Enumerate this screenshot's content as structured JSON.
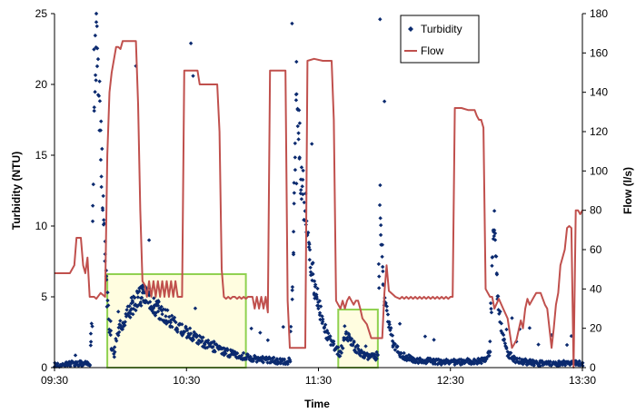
{
  "chart_data": {
    "type": "scatter",
    "xlabel": "Time",
    "ylabel": "Turbidity (NTU)",
    "y2label": "Flow (l/s)",
    "x_ticks": [
      "09:30",
      "10:30",
      "11:30",
      "12:30",
      "13:30"
    ],
    "x_tick_minutes": [
      0,
      60,
      120,
      180,
      240
    ],
    "xlim_minutes": [
      0,
      240
    ],
    "ylim": [
      0,
      25
    ],
    "y_ticks": [
      0,
      5,
      10,
      15,
      20,
      25
    ],
    "y2lim": [
      0,
      180
    ],
    "y2_ticks": [
      0,
      20,
      40,
      60,
      80,
      100,
      120,
      140,
      160,
      180
    ],
    "legend_position": "top-right",
    "colors": {
      "turbidity": "#0b2a6f",
      "flow": "#c0504d",
      "highlight_border": "#8fd14f",
      "highlight_fill": "#fffde0"
    },
    "series": [
      {
        "name": "Turbidity",
        "kind": "scatter",
        "axis": "left",
        "anchors": [
          [
            0,
            0.2
          ],
          [
            10,
            0.3
          ],
          [
            14,
            0.3
          ],
          [
            16,
            0.2
          ],
          [
            17,
            3
          ],
          [
            18,
            20
          ],
          [
            19,
            23
          ],
          [
            20,
            20
          ],
          [
            21,
            16
          ],
          [
            22,
            12
          ],
          [
            23,
            8
          ],
          [
            24,
            5
          ],
          [
            25,
            3
          ],
          [
            26,
            1.5
          ],
          [
            27,
            1
          ],
          [
            28,
            1.8
          ],
          [
            29,
            2.5
          ],
          [
            31,
            3.2
          ],
          [
            33,
            3.8
          ],
          [
            35,
            4.3
          ],
          [
            37,
            4.7
          ],
          [
            39,
            5.0
          ],
          [
            41,
            5.1
          ],
          [
            43,
            4.9
          ],
          [
            45,
            4.5
          ],
          [
            48,
            4.0
          ],
          [
            51,
            3.6
          ],
          [
            54,
            3.2
          ],
          [
            57,
            2.8
          ],
          [
            60,
            2.5
          ],
          [
            63,
            2.2
          ],
          [
            66,
            1.9
          ],
          [
            70,
            1.6
          ],
          [
            74,
            1.3
          ],
          [
            80,
            1.0
          ],
          [
            86,
            0.8
          ],
          [
            92,
            0.6
          ],
          [
            100,
            0.5
          ],
          [
            105,
            0.4
          ],
          [
            107,
            0.5
          ],
          [
            108,
            5
          ],
          [
            109,
            12
          ],
          [
            110,
            20
          ],
          [
            111,
            17
          ],
          [
            112,
            14
          ],
          [
            114,
            11
          ],
          [
            116,
            8
          ],
          [
            118,
            6
          ],
          [
            120,
            4.5
          ],
          [
            122,
            3
          ],
          [
            125,
            2
          ],
          [
            128,
            1.3
          ],
          [
            130,
            1
          ],
          [
            131,
            1.5
          ],
          [
            132,
            2.5
          ],
          [
            134,
            2
          ],
          [
            137,
            1.4
          ],
          [
            140,
            1
          ],
          [
            143,
            0.8
          ],
          [
            146,
            0.7
          ],
          [
            147,
            1
          ],
          [
            148,
            12
          ],
          [
            149,
            8
          ],
          [
            150,
            5
          ],
          [
            152,
            3
          ],
          [
            154,
            1.8
          ],
          [
            157,
            1
          ],
          [
            160,
            0.7
          ],
          [
            165,
            0.5
          ],
          [
            175,
            0.4
          ],
          [
            185,
            0.4
          ],
          [
            195,
            0.5
          ],
          [
            198,
            1
          ],
          [
            199,
            8
          ],
          [
            200,
            10
          ],
          [
            201,
            7
          ],
          [
            202,
            4
          ],
          [
            204,
            2
          ],
          [
            206,
            1
          ],
          [
            210,
            0.5
          ],
          [
            220,
            0.3
          ],
          [
            230,
            0.3
          ],
          [
            240,
            0.3
          ]
        ],
        "outliers": [
          [
            19,
            24.4
          ],
          [
            37,
            21.3
          ],
          [
            40,
            5.8
          ],
          [
            62,
            22.9
          ],
          [
            63,
            20.6
          ],
          [
            108,
            24.3
          ],
          [
            110,
            21.6
          ],
          [
            117,
            15.8
          ],
          [
            148,
            24.6
          ],
          [
            150,
            18.8
          ],
          [
            208,
            3.5
          ],
          [
            216,
            2.8
          ],
          [
            226,
            2.3
          ],
          [
            233,
            1.6
          ],
          [
            43,
            9.0
          ],
          [
            110,
            13.0
          ]
        ]
      },
      {
        "name": "Flow",
        "kind": "line",
        "axis": "right",
        "points": [
          [
            0,
            48
          ],
          [
            7,
            48
          ],
          [
            9,
            52
          ],
          [
            10,
            66
          ],
          [
            12,
            66
          ],
          [
            13,
            52
          ],
          [
            14,
            48
          ],
          [
            15,
            56
          ],
          [
            16,
            36
          ],
          [
            18,
            36
          ],
          [
            19,
            35
          ],
          [
            21,
            38
          ],
          [
            23,
            36
          ],
          [
            24,
            108
          ],
          [
            25,
            140
          ],
          [
            26,
            150
          ],
          [
            28,
            163
          ],
          [
            29,
            163
          ],
          [
            30,
            162
          ],
          [
            31,
            166
          ],
          [
            37,
            166
          ],
          [
            38,
            134
          ],
          [
            39,
            80
          ],
          [
            40,
            44
          ],
          [
            41,
            42
          ],
          [
            42,
            36
          ],
          [
            43,
            44
          ],
          [
            44,
            36
          ],
          [
            45,
            44
          ],
          [
            46,
            36
          ],
          [
            47,
            44
          ],
          [
            48,
            36
          ],
          [
            49,
            44
          ],
          [
            50,
            36
          ],
          [
            51,
            44
          ],
          [
            52,
            36
          ],
          [
            53,
            44
          ],
          [
            54,
            36
          ],
          [
            55,
            44
          ],
          [
            56,
            36
          ],
          [
            58,
            36
          ],
          [
            59,
            151
          ],
          [
            65,
            151
          ],
          [
            66,
            144
          ],
          [
            74,
            144
          ],
          [
            75,
            120
          ],
          [
            76,
            50
          ],
          [
            77,
            36
          ],
          [
            78,
            35
          ],
          [
            79,
            36
          ],
          [
            80,
            35
          ],
          [
            81,
            36
          ],
          [
            82,
            36
          ],
          [
            83,
            35
          ],
          [
            84,
            36
          ],
          [
            85,
            35
          ],
          [
            86,
            36
          ],
          [
            87,
            35
          ],
          [
            88,
            36
          ],
          [
            89,
            36
          ],
          [
            90,
            36
          ],
          [
            91,
            30
          ],
          [
            92,
            36
          ],
          [
            93,
            30
          ],
          [
            94,
            36
          ],
          [
            95,
            30
          ],
          [
            96,
            36
          ],
          [
            97,
            28
          ],
          [
            98,
            151
          ],
          [
            105,
            151
          ],
          [
            106,
            34
          ],
          [
            107,
            10
          ],
          [
            114,
            10
          ],
          [
            115,
            156
          ],
          [
            118,
            157
          ],
          [
            122,
            156
          ],
          [
            126,
            156
          ],
          [
            127,
            126
          ],
          [
            128,
            34
          ],
          [
            129,
            32
          ],
          [
            130,
            30
          ],
          [
            131,
            34
          ],
          [
            132,
            30
          ],
          [
            133,
            34
          ],
          [
            134,
            36
          ],
          [
            135,
            34
          ],
          [
            136,
            32
          ],
          [
            137,
            34
          ],
          [
            138,
            34
          ],
          [
            139,
            30
          ],
          [
            140,
            25
          ],
          [
            142,
            22
          ],
          [
            144,
            15
          ],
          [
            149,
            15
          ],
          [
            150,
            38
          ],
          [
            151,
            52
          ],
          [
            152,
            39
          ],
          [
            154,
            37
          ],
          [
            155,
            36
          ],
          [
            157,
            35
          ],
          [
            158,
            36
          ],
          [
            159,
            35
          ],
          [
            160,
            36
          ],
          [
            161,
            35
          ],
          [
            162,
            36
          ],
          [
            163,
            35
          ],
          [
            164,
            36
          ],
          [
            165,
            35
          ],
          [
            166,
            36
          ],
          [
            167,
            35
          ],
          [
            168,
            36
          ],
          [
            169,
            35
          ],
          [
            170,
            36
          ],
          [
            171,
            35
          ],
          [
            172,
            36
          ],
          [
            173,
            35
          ],
          [
            174,
            36
          ],
          [
            175,
            35
          ],
          [
            176,
            36
          ],
          [
            177,
            35
          ],
          [
            178,
            36
          ],
          [
            179,
            35
          ],
          [
            180,
            36
          ],
          [
            181,
            36
          ],
          [
            182,
            132
          ],
          [
            185,
            132
          ],
          [
            188,
            131
          ],
          [
            191,
            131
          ],
          [
            192,
            128
          ],
          [
            193,
            126
          ],
          [
            194,
            126
          ],
          [
            195,
            122
          ],
          [
            196,
            40
          ],
          [
            197,
            38
          ],
          [
            198,
            36
          ],
          [
            199,
            36
          ],
          [
            200,
            30
          ],
          [
            202,
            35
          ],
          [
            204,
            30
          ],
          [
            206,
            25
          ],
          [
            208,
            10
          ],
          [
            209,
            12
          ],
          [
            210,
            14
          ],
          [
            212,
            24
          ],
          [
            213,
            20
          ],
          [
            214,
            30
          ],
          [
            215,
            35
          ],
          [
            216,
            32
          ],
          [
            217,
            34
          ],
          [
            218,
            36
          ],
          [
            219,
            38
          ],
          [
            221,
            38
          ],
          [
            223,
            32
          ],
          [
            224,
            30
          ],
          [
            225,
            20
          ],
          [
            226,
            10
          ],
          [
            227,
            20
          ],
          [
            228,
            32
          ],
          [
            229,
            38
          ],
          [
            230,
            52
          ],
          [
            232,
            60
          ],
          [
            233,
            71
          ],
          [
            234,
            72
          ],
          [
            235,
            71
          ],
          [
            236,
            0
          ],
          [
            237,
            80
          ],
          [
            238,
            80
          ],
          [
            239,
            78
          ],
          [
            240,
            80
          ],
          [
            241,
            0
          ],
          [
            242,
            58
          ],
          [
            243,
            60
          ],
          [
            244,
            54
          ],
          [
            246,
            48
          ],
          [
            248,
            52
          ],
          [
            249,
            54
          ],
          [
            251,
            60
          ],
          [
            253,
            60
          ],
          [
            254,
            52
          ],
          [
            256,
            59
          ],
          [
            258,
            60
          ],
          [
            260,
            52
          ],
          [
            261,
            60
          ],
          [
            262,
            54
          ],
          [
            264,
            60
          ],
          [
            266,
            60
          ],
          [
            268,
            55
          ],
          [
            270,
            55
          ],
          [
            272,
            62
          ],
          [
            274,
            62
          ],
          [
            275,
            55
          ],
          [
            277,
            55
          ],
          [
            278,
            62
          ],
          [
            280,
            62
          ],
          [
            282,
            55
          ],
          [
            283,
            62
          ],
          [
            284,
            62
          ],
          [
            286,
            55
          ],
          [
            287,
            62
          ],
          [
            290,
            55
          ],
          [
            292,
            62
          ],
          [
            296,
            62
          ],
          [
            298,
            55
          ],
          [
            300,
            55
          ]
        ]
      }
    ],
    "highlight_boxes": [
      {
        "x0": 24,
        "x1": 87,
        "y0": 0,
        "y1": 6.6
      },
      {
        "x0": 129,
        "x1": 147,
        "y0": 0,
        "y1": 4.1
      }
    ]
  }
}
